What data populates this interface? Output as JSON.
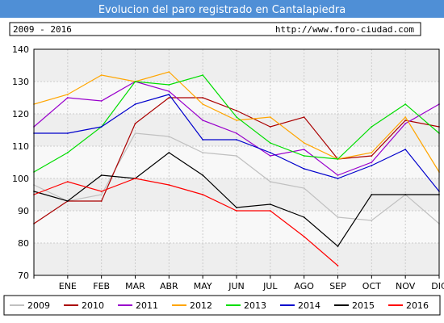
{
  "chart_data": {
    "type": "line",
    "title": "Evolucion del paro registrado en Cantalapiedra",
    "period": "2009 - 2016",
    "source_url": "http://www.foro-ciudad.com",
    "categories": [
      "",
      "ENE",
      "FEB",
      "MAR",
      "ABR",
      "MAY",
      "JUN",
      "JUL",
      "AGO",
      "SEP",
      "OCT",
      "NOV",
      "DIC"
    ],
    "ylim": [
      70,
      140
    ],
    "yticks": [
      70,
      80,
      90,
      100,
      110,
      120,
      130,
      140
    ],
    "grid": true,
    "legend_position": "bottom",
    "series": [
      {
        "name": "2009",
        "color": "#c0c0c0",
        "values": [
          98,
          93,
          95,
          114,
          113,
          108,
          107,
          99,
          97,
          88,
          87,
          95,
          86
        ]
      },
      {
        "name": "2010",
        "color": "#aa0000",
        "values": [
          86,
          93,
          93,
          117,
          125,
          125,
          121,
          116,
          119,
          106,
          107,
          118,
          116
        ]
      },
      {
        "name": "2011",
        "color": "#9900cc",
        "values": [
          116,
          125,
          124,
          130,
          127,
          118,
          114,
          107,
          109,
          101,
          105,
          117,
          123
        ]
      },
      {
        "name": "2012",
        "color": "#ffa500",
        "values": [
          123,
          126,
          132,
          130,
          133,
          123,
          118,
          119,
          111,
          106,
          108,
          119,
          102
        ]
      },
      {
        "name": "2013",
        "color": "#00dd00",
        "values": [
          102,
          108,
          116,
          130,
          129,
          132,
          119,
          111,
          107,
          106,
          116,
          123,
          114
        ]
      },
      {
        "name": "2014",
        "color": "#0000cc",
        "values": [
          114,
          114,
          116,
          123,
          126,
          112,
          112,
          108,
          103,
          100,
          104,
          109,
          96
        ]
      },
      {
        "name": "2015",
        "color": "#000000",
        "values": [
          96,
          93,
          101,
          100,
          108,
          101,
          91,
          92,
          88,
          79,
          95,
          95,
          95
        ]
      },
      {
        "name": "2016",
        "color": "#ff0000",
        "values": [
          95,
          99,
          96,
          100,
          98,
          95,
          90,
          90,
          82,
          73,
          null,
          null,
          null
        ]
      }
    ]
  },
  "header": {
    "title": "Evolucion del paro registrado en Cantalapiedra",
    "period": "2009 - 2016",
    "url": "http://www.foro-ciudad.com",
    "title_bg": "#5b9bd5"
  }
}
